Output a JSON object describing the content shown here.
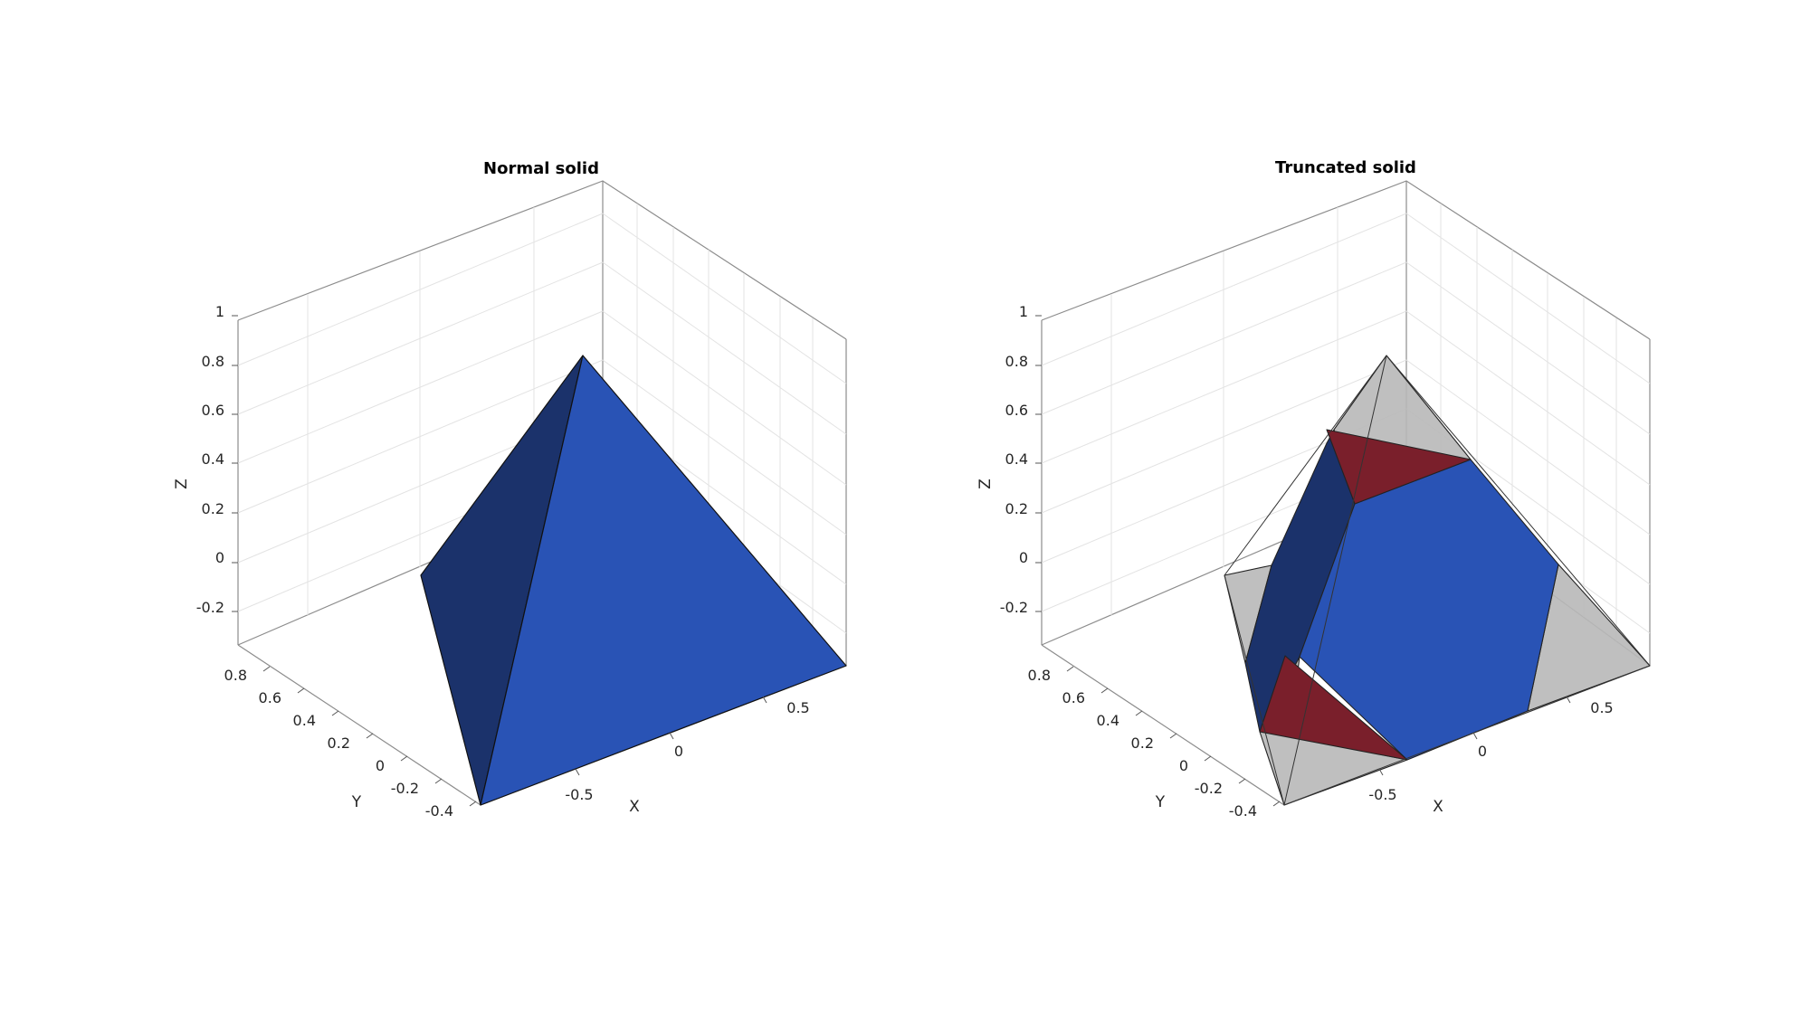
{
  "chart_data": [
    {
      "type": "3d-surface",
      "title": "Normal solid",
      "xlabel": "X",
      "ylabel": "Y",
      "zlabel": "Z",
      "x_ticks": [
        "-0.5",
        "0",
        "0.5"
      ],
      "y_ticks": [
        "-0.4",
        "-0.2",
        "0",
        "0.2",
        "0.4",
        "0.6",
        "0.8"
      ],
      "z_ticks": [
        "-0.2",
        "0",
        "0.2",
        "0.4",
        "0.6",
        "0.8",
        "1"
      ],
      "grid": true,
      "solid": "tetrahedron",
      "colors": {
        "face_light": "#2953b5",
        "face_dark": "#1b326b"
      }
    },
    {
      "type": "3d-surface",
      "title": "Truncated solid",
      "xlabel": "X",
      "ylabel": "Y",
      "zlabel": "Z",
      "x_ticks": [
        "-0.5",
        "0",
        "0.5"
      ],
      "y_ticks": [
        "-0.4",
        "-0.2",
        "0",
        "0.2",
        "0.4",
        "0.6",
        "0.8"
      ],
      "z_ticks": [
        "-0.2",
        "0",
        "0.2",
        "0.4",
        "0.6",
        "0.8",
        "1"
      ],
      "grid": true,
      "solid": "truncated tetrahedron inside transparent tetrahedron",
      "colors": {
        "hexagon_face": "#2953b5",
        "hexagon_face_dark": "#1b326b",
        "triangle_face": "#7a1f2b",
        "cut_corners": "#b3b3b3"
      }
    }
  ]
}
